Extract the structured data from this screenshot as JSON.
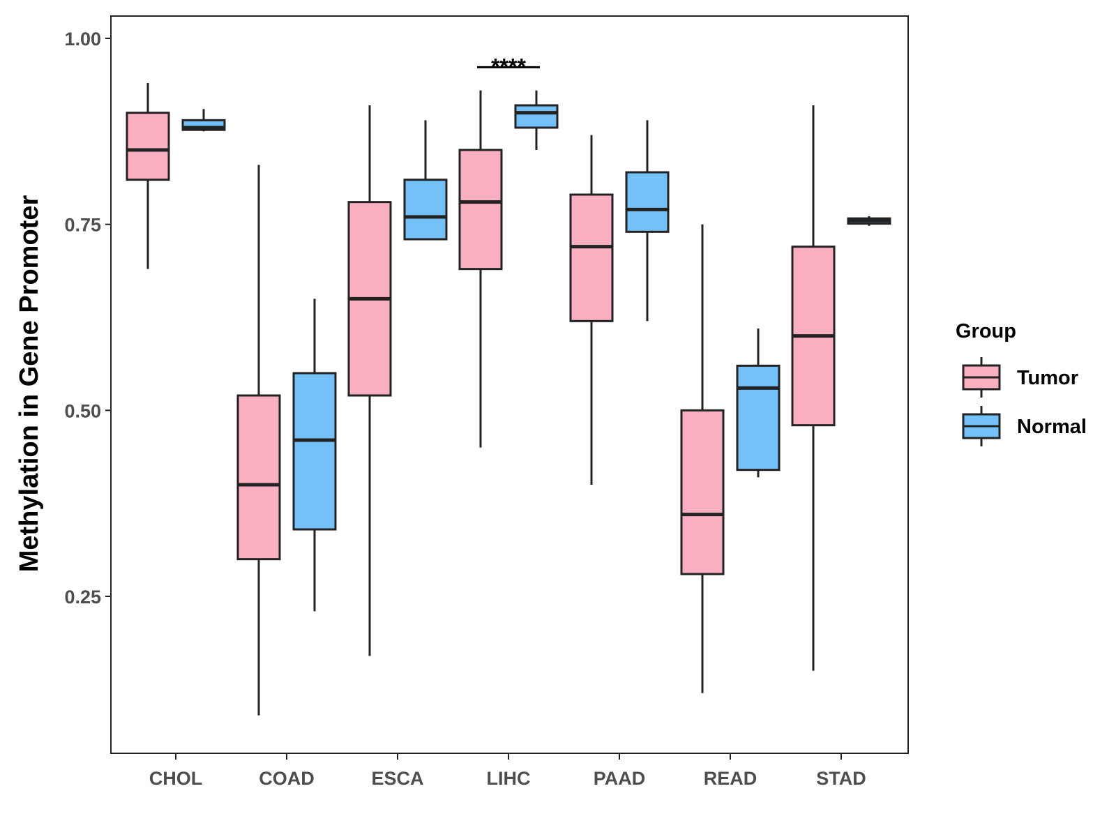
{
  "chart_data": {
    "type": "boxplot",
    "title": "",
    "xlabel": "",
    "ylabel": "Methylation in Gene Promoter",
    "ylim": [
      0.02,
      1.03
    ],
    "yticks": [
      0.25,
      0.5,
      0.75,
      1.0
    ],
    "ytick_labels": [
      "0.25",
      "0.50",
      "0.75",
      "1.00"
    ],
    "categories": [
      "CHOL",
      "COAD",
      "ESCA",
      "LIHC",
      "PAAD",
      "READ",
      "STAD"
    ],
    "legend": {
      "title": "Group",
      "position": "right",
      "entries": [
        {
          "label": "Tumor",
          "color": "#fbb0c2"
        },
        {
          "label": "Normal",
          "color": "#74c0f8"
        }
      ]
    },
    "series": [
      {
        "name": "Tumor",
        "color": "#fbb0c2",
        "boxes": [
          {
            "category": "CHOL",
            "min": 0.69,
            "q1": 0.81,
            "median": 0.85,
            "q3": 0.9,
            "max": 0.94
          },
          {
            "category": "COAD",
            "min": 0.09,
            "q1": 0.3,
            "median": 0.4,
            "q3": 0.52,
            "max": 0.83
          },
          {
            "category": "ESCA",
            "min": 0.17,
            "q1": 0.52,
            "median": 0.65,
            "q3": 0.78,
            "max": 0.91
          },
          {
            "category": "LIHC",
            "min": 0.45,
            "q1": 0.69,
            "median": 0.78,
            "q3": 0.85,
            "max": 0.93
          },
          {
            "category": "PAAD",
            "min": 0.4,
            "q1": 0.62,
            "median": 0.72,
            "q3": 0.79,
            "max": 0.87
          },
          {
            "category": "READ",
            "min": 0.12,
            "q1": 0.28,
            "median": 0.36,
            "q3": 0.5,
            "max": 0.75
          },
          {
            "category": "STAD",
            "min": 0.15,
            "q1": 0.48,
            "median": 0.6,
            "q3": 0.72,
            "max": 0.91
          }
        ]
      },
      {
        "name": "Normal",
        "color": "#74c0f8",
        "boxes": [
          {
            "category": "CHOL",
            "min": 0.875,
            "q1": 0.877,
            "median": 0.88,
            "q3": 0.89,
            "max": 0.905
          },
          {
            "category": "COAD",
            "min": 0.23,
            "q1": 0.34,
            "median": 0.46,
            "q3": 0.55,
            "max": 0.65
          },
          {
            "category": "ESCA",
            "min": 0.73,
            "q1": 0.73,
            "median": 0.76,
            "q3": 0.81,
            "max": 0.89
          },
          {
            "category": "LIHC",
            "min": 0.85,
            "q1": 0.88,
            "median": 0.9,
            "q3": 0.91,
            "max": 0.93
          },
          {
            "category": "PAAD",
            "min": 0.62,
            "q1": 0.74,
            "median": 0.77,
            "q3": 0.82,
            "max": 0.89
          },
          {
            "category": "READ",
            "min": 0.41,
            "q1": 0.42,
            "median": 0.53,
            "q3": 0.56,
            "max": 0.61
          },
          {
            "category": "STAD",
            "min": 0.748,
            "q1": 0.751,
            "median": 0.755,
            "q3": 0.758,
            "max": 0.761
          }
        ]
      }
    ],
    "annotations": [
      {
        "category": "LIHC",
        "text": "****",
        "y": 0.98
      }
    ]
  }
}
